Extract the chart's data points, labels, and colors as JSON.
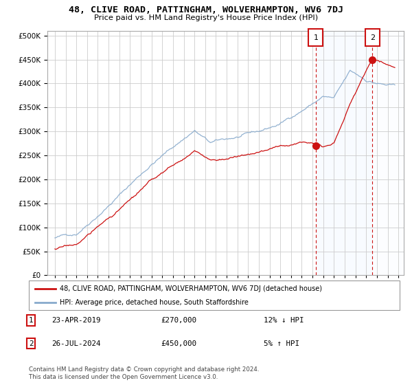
{
  "title": "48, CLIVE ROAD, PATTINGHAM, WOLVERHAMPTON, WV6 7DJ",
  "subtitle": "Price paid vs. HM Land Registry's House Price Index (HPI)",
  "yticks": [
    0,
    50000,
    100000,
    150000,
    200000,
    250000,
    300000,
    350000,
    400000,
    450000,
    500000
  ],
  "sale1_date": 2019.31,
  "sale1_price": 270000,
  "sale1_label": "1",
  "sale2_date": 2024.58,
  "sale2_price": 450000,
  "sale2_label": "2",
  "legend_line1": "48, CLIVE ROAD, PATTINGHAM, WOLVERHAMPTON, WV6 7DJ (detached house)",
  "legend_line2": "HPI: Average price, detached house, South Staffordshire",
  "annotation1_date": "23-APR-2019",
  "annotation1_price": "£270,000",
  "annotation1_hpi": "12% ↓ HPI",
  "annotation2_date": "26-JUL-2024",
  "annotation2_price": "£450,000",
  "annotation2_hpi": "5% ↑ HPI",
  "footer": "Contains HM Land Registry data © Crown copyright and database right 2024.\nThis data is licensed under the Open Government Licence v3.0.",
  "hpi_color": "#88aacc",
  "price_color": "#cc1111",
  "shade_color": "#ddeeff",
  "hatch_color": "#bbccdd",
  "background_color": "#ffffff",
  "grid_color": "#cccccc"
}
